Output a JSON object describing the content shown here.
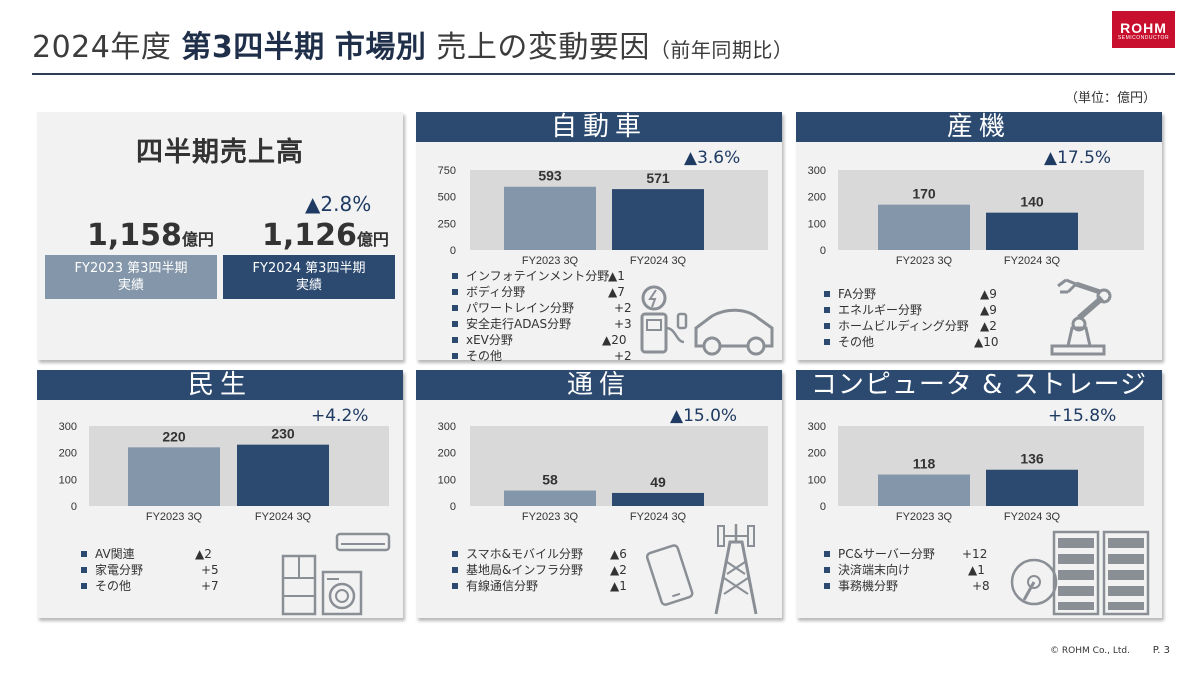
{
  "header": {
    "title_part1": "2024年度",
    "title_bold1": "第3四半期",
    "title_bold2": "市場別",
    "title_part2": "売上の変動要因",
    "title_sub": "（前年同期比）",
    "logo_main": "ROHM",
    "logo_sub": "SEMICONDUCTOR",
    "unit": "（単位：億円）"
  },
  "colors": {
    "accent": "#2c4a70",
    "bar_prev": "#8496a9",
    "bar_curr": "#2c4a70",
    "plot_bg": "#d9d9d9",
    "brand": "#c8102e"
  },
  "summary": {
    "title": "四半期売上高",
    "pct": "▲2.8%",
    "prev_value": "1,158",
    "curr_value": "1,126",
    "unit": "億円",
    "prev_label": "FY2023 第3四半期",
    "curr_label": "FY2024 第3四半期",
    "label_suffix": "実績"
  },
  "segments": {
    "auto": {
      "title": "自動車",
      "pct": "▲3.6%",
      "legend": [
        {
          "label": "インフォテインメント分野",
          "value": "▲1"
        },
        {
          "label": "ボディ分野",
          "value": "▲7"
        },
        {
          "label": "パワートレイン分野",
          "value": "+2"
        },
        {
          "label": "安全走行ADAS分野",
          "value": "+3"
        },
        {
          "label": "xEV分野",
          "value": "▲20"
        },
        {
          "label": "その他",
          "value": "+2"
        }
      ],
      "icon": "ev-charging-car-icon"
    },
    "industrial": {
      "title": "産機",
      "pct": "▲17.5%",
      "legend": [
        {
          "label": "FA分野",
          "value": "▲9"
        },
        {
          "label": "エネルギー分野",
          "value": "▲9"
        },
        {
          "label": "ホームビルディング分野",
          "value": "▲2"
        },
        {
          "label": "その他",
          "value": "▲10"
        }
      ],
      "icon": "robot-arm-icon"
    },
    "consumer": {
      "title": "民生",
      "pct": "+4.2%",
      "legend": [
        {
          "label": "AV関連",
          "value": "▲2"
        },
        {
          "label": "家電分野",
          "value": "+5"
        },
        {
          "label": "その他",
          "value": "+7"
        }
      ],
      "icon": "home-appliances-icon"
    },
    "comm": {
      "title": "通信",
      "pct": "▲15.0%",
      "legend": [
        {
          "label": "スマホ&モバイル分野",
          "value": "▲6"
        },
        {
          "label": "基地局&インフラ分野",
          "value": "▲2"
        },
        {
          "label": "有線通信分野",
          "value": "▲1"
        }
      ],
      "icon": "smartphone-tower-icon"
    },
    "computer": {
      "title": "コンピュータ & ストレージ",
      "pct": "+15.8%",
      "legend": [
        {
          "label": "PC&サーバー分野",
          "value": "+12"
        },
        {
          "label": "決済端末向け",
          "value": "▲1"
        },
        {
          "label": "事務機分野",
          "value": "+8"
        }
      ],
      "icon": "server-hdd-icon"
    }
  },
  "chart_data": [
    {
      "id": "auto",
      "type": "bar",
      "categories": [
        "FY2023 3Q",
        "FY2024 3Q"
      ],
      "values": [
        593,
        571
      ],
      "yticks": [
        0,
        250,
        500,
        750
      ],
      "ylim": [
        0,
        750
      ],
      "grid": false
    },
    {
      "id": "industrial",
      "type": "bar",
      "categories": [
        "FY2023 3Q",
        "FY2024 3Q"
      ],
      "values": [
        170,
        140
      ],
      "yticks": [
        0,
        100,
        200,
        300
      ],
      "ylim": [
        0,
        300
      ],
      "grid": false
    },
    {
      "id": "consumer",
      "type": "bar",
      "categories": [
        "FY2023 3Q",
        "FY2024 3Q"
      ],
      "values": [
        220,
        230
      ],
      "yticks": [
        0,
        100,
        200,
        300
      ],
      "ylim": [
        0,
        300
      ],
      "grid": false
    },
    {
      "id": "comm",
      "type": "bar",
      "categories": [
        "FY2023 3Q",
        "FY2024 3Q"
      ],
      "values": [
        58,
        49
      ],
      "yticks": [
        0,
        100,
        200,
        300
      ],
      "ylim": [
        0,
        300
      ],
      "grid": false
    },
    {
      "id": "computer",
      "type": "bar",
      "categories": [
        "FY2023 3Q",
        "FY2024 3Q"
      ],
      "values": [
        118,
        136
      ],
      "yticks": [
        0,
        100,
        200,
        300
      ],
      "ylim": [
        0,
        300
      ],
      "grid": false
    }
  ],
  "footer": {
    "copyright": "© ROHM Co., Ltd.",
    "page": "P. 3"
  }
}
